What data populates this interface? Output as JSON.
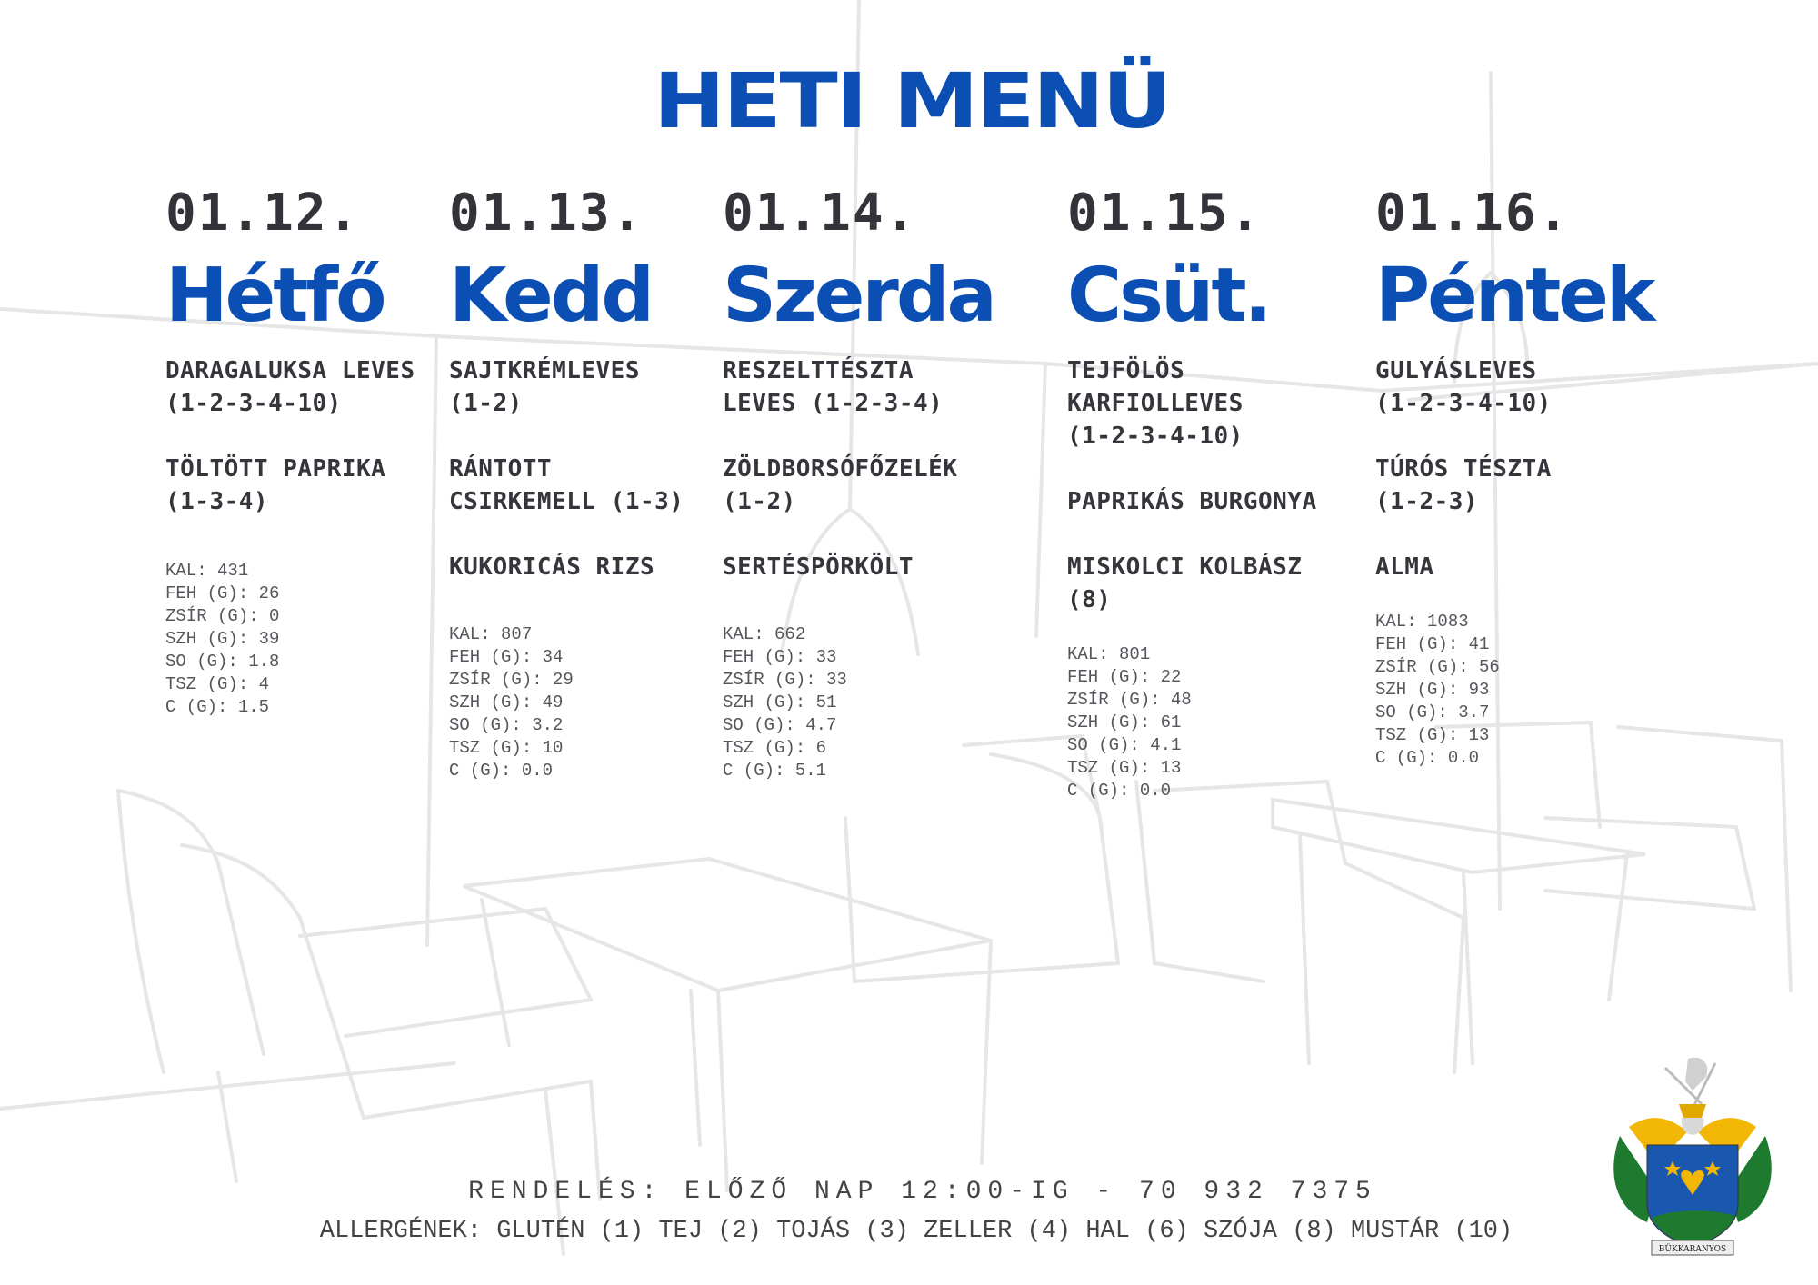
{
  "title": "HETI MENÜ",
  "days": [
    {
      "date": "01.12.",
      "name": "Hétfő",
      "dishes": [
        "DARAGALUKSA LEVES\n(1-2-3-4-10)",
        "TÖLTÖTT PAPRIKA\n(1-3-4)"
      ],
      "nutrition": [
        "KAL: 431",
        "FEH (G): 26",
        "ZSÍR (G): 0",
        "SZH (G): 39",
        "SO (G): 1.8",
        "TSZ (G): 4",
        "C (G): 1.5"
      ]
    },
    {
      "date": "01.13.",
      "name": "Kedd",
      "dishes": [
        "SAJTKRÉMLEVES\n(1-2)",
        "RÁNTOTT\nCSIRKEMELL (1-3)",
        "KUKORICÁS RIZS"
      ],
      "nutrition": [
        "KAL: 807",
        "FEH (G): 34",
        "ZSÍR (G): 29",
        "SZH (G): 49",
        "SO (G): 3.2",
        "TSZ (G): 10",
        "C (G): 0.0"
      ]
    },
    {
      "date": "01.14.",
      "name": "Szerda",
      "dishes": [
        "RESZELTTÉSZTA\nLEVES (1-2-3-4)",
        "ZÖLDBORSÓFŐZELÉK\n(1-2)",
        "SERTÉSPÖRKÖLT"
      ],
      "nutrition": [
        "KAL: 662",
        "FEH (G): 33",
        "ZSÍR (G): 33",
        "SZH (G): 51",
        "SO (G): 4.7",
        "TSZ (G): 6",
        "C (G): 5.1"
      ]
    },
    {
      "date": "01.15.",
      "name": "Csüt.",
      "dishes": [
        "TEJFÖLÖS\nKARFIOLLEVES\n(1-2-3-4-10)",
        "PAPRIKÁS BURGONYA",
        "MISKOLCI KOLBÁSZ\n(8)"
      ],
      "nutrition": [
        "KAL: 801",
        "FEH (G): 22",
        "ZSÍR (G): 48",
        "SZH (G): 61",
        "SO (G): 4.1",
        "TSZ (G): 13",
        "C (G): 0.0"
      ]
    },
    {
      "date": "01.16.",
      "name": "Péntek",
      "dishes": [
        "GULYÁSLEVES\n(1-2-3-4-10)",
        "TÚRÓS TÉSZTA\n(1-2-3)",
        "ALMA"
      ],
      "nutrition": [
        "KAL: 1083",
        "FEH (G): 41",
        "ZSÍR (G): 56",
        "SZH (G): 93",
        "SO (G): 3.7",
        "TSZ (G): 13",
        "C (G): 0.0"
      ]
    }
  ],
  "footer": {
    "order": "RENDELÉS: ELŐZŐ NAP 12:00-IG - 70 932 7375",
    "allergens": "ALLERGÉNEK: GLUTÉN (1) TEJ (2) TOJÁS (3) ZELLER (4) HAL (6) SZÓJA (8) MUSTÁR (10)"
  },
  "logo": {
    "text": "BÜKKARANYOS",
    "icon": "coat-of-arms"
  },
  "colors": {
    "accent": "#0b4fb5",
    "text": "#35363c",
    "sketch": "#e4e4e4"
  }
}
